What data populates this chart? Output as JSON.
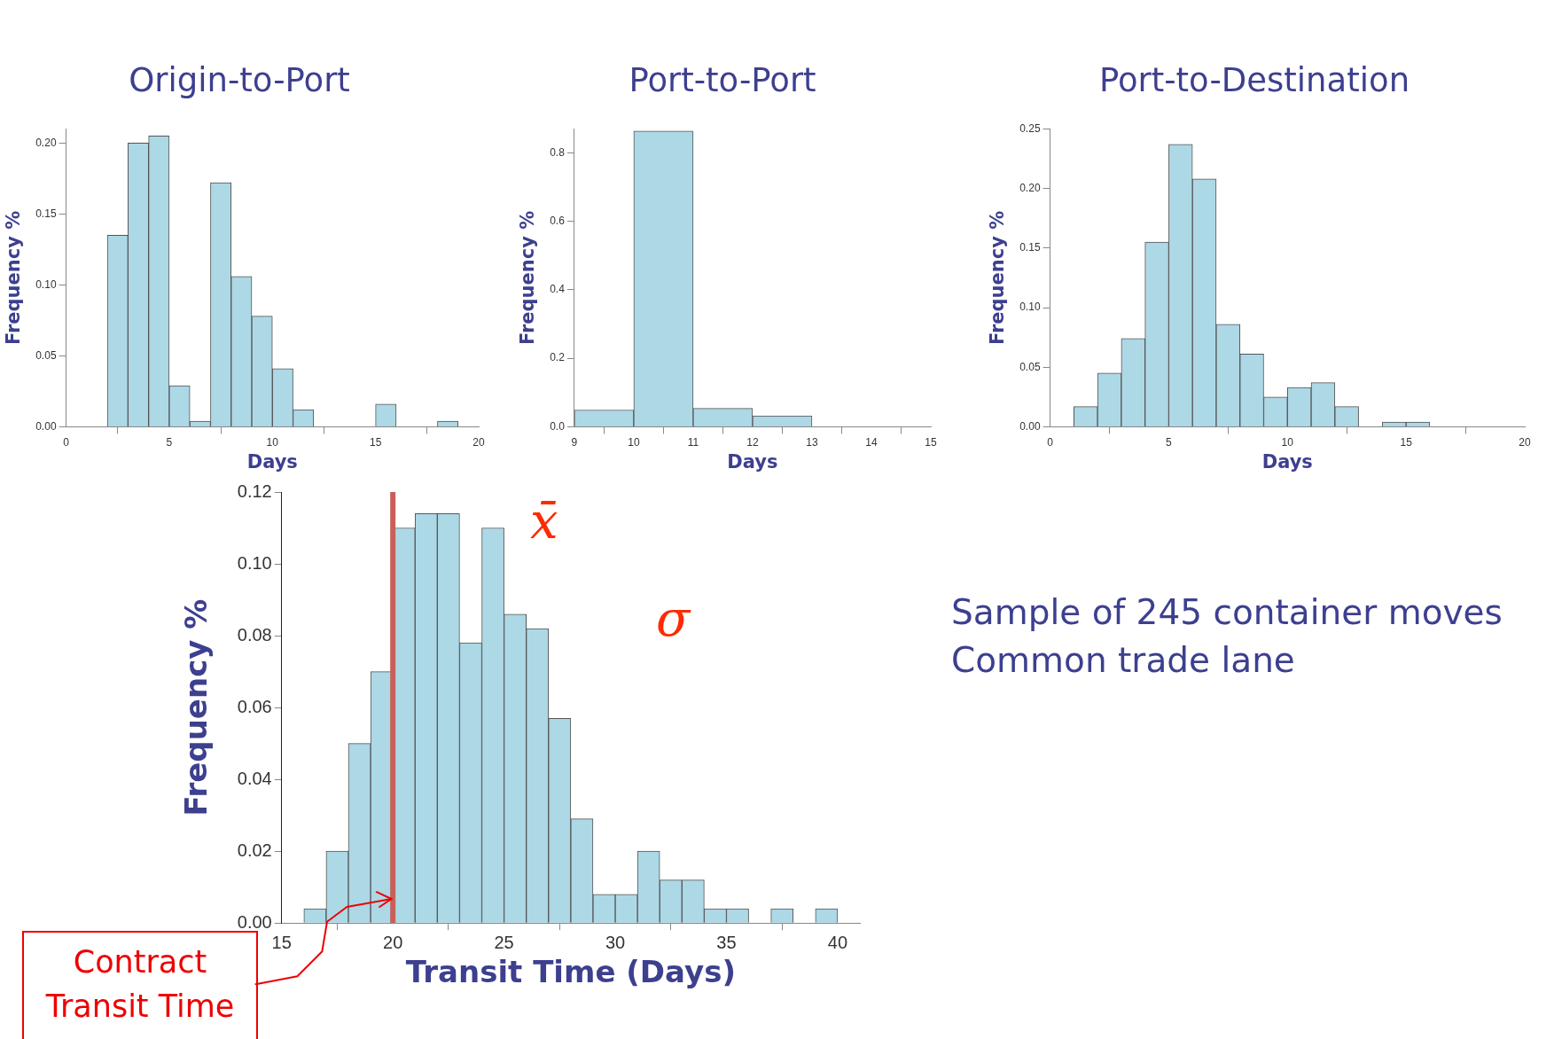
{
  "chart_data": [
    {
      "type": "histogram",
      "title": "Origin-to-Port",
      "xlabel": "Days",
      "ylabel": "Frequency %",
      "color": "#add8e6",
      "bins": [
        2,
        3,
        4,
        5,
        6,
        7,
        8,
        9,
        10,
        11,
        12,
        13,
        14,
        15,
        16,
        17,
        18,
        19
      ],
      "values": [
        0.135,
        0.2,
        0.205,
        0.029,
        0.004,
        0.172,
        0.106,
        0.078,
        0.041,
        0.012,
        0,
        0,
        0,
        0.016,
        0,
        0,
        0.004
      ],
      "xlim": [
        0,
        20
      ],
      "xticks": [
        0,
        5,
        10,
        15,
        20
      ],
      "ylim": [
        0,
        0.21
      ],
      "yticks": [
        {
          "value": 0,
          "label": "0.00"
        },
        {
          "value": 0.05,
          "label": "0.05"
        },
        {
          "value": 0.1,
          "label": "0.10"
        },
        {
          "value": 0.15,
          "label": "0.15"
        },
        {
          "value": 0.2,
          "label": "0.20"
        }
      ]
    },
    {
      "type": "histogram",
      "title": "Port-to-Port",
      "xlabel": "Days",
      "ylabel": "Frequency %",
      "color": "#add8e6",
      "bins": [
        9,
        10,
        11,
        12,
        13
      ],
      "values": [
        0.049,
        0.864,
        0.054,
        0.032
      ],
      "xlim": [
        9,
        15
      ],
      "xticks": [
        9,
        10,
        11,
        12,
        13,
        14,
        15
      ],
      "ylim": [
        0,
        0.87
      ],
      "yticks": [
        {
          "value": 0,
          "label": "0.0"
        },
        {
          "value": 0.2,
          "label": "0.2"
        },
        {
          "value": 0.4,
          "label": "0.4"
        },
        {
          "value": 0.6,
          "label": "0.6"
        },
        {
          "value": 0.8,
          "label": "0.8"
        }
      ]
    },
    {
      "type": "histogram",
      "title": "Port-to-Destination",
      "xlabel": "Days",
      "ylabel": "Frequency %",
      "color": "#add8e6",
      "bins": [
        1,
        2,
        3,
        4,
        5,
        6,
        7,
        8,
        9,
        10,
        11,
        12,
        13,
        14,
        15,
        16
      ],
      "values": [
        0.017,
        0.045,
        0.074,
        0.155,
        0.237,
        0.208,
        0.086,
        0.061,
        0.025,
        0.033,
        0.037,
        0.017,
        0,
        0.004,
        0.004
      ],
      "xlim": [
        0,
        20
      ],
      "xticks": [
        0,
        5,
        10,
        15,
        20
      ],
      "ylim": [
        0,
        0.25
      ],
      "yticks": [
        {
          "value": 0,
          "label": "0.00"
        },
        {
          "value": 0.05,
          "label": "0.05"
        },
        {
          "value": 0.1,
          "label": "0.10"
        },
        {
          "value": 0.15,
          "label": "0.15"
        },
        {
          "value": 0.2,
          "label": "0.20"
        },
        {
          "value": 0.25,
          "label": "0.25"
        }
      ]
    },
    {
      "type": "histogram",
      "xlabel": "Transit Time (Days)",
      "ylabel": "Frequency %",
      "color": "#add8e6",
      "bins": [
        16,
        17,
        18,
        19,
        20,
        21,
        22,
        23,
        24,
        25,
        26,
        27,
        28,
        29,
        30,
        31,
        32,
        33,
        34,
        35,
        36,
        37,
        38,
        39,
        40
      ],
      "values": [
        0.004,
        0.02,
        0.05,
        0.07,
        0.11,
        0.114,
        0.114,
        0.078,
        0.11,
        0.086,
        0.082,
        0.057,
        0.029,
        0.008,
        0.008,
        0.02,
        0.012,
        0.012,
        0.004,
        0.004,
        0,
        0.004,
        0,
        0.004
      ],
      "xlim": [
        15,
        41
      ],
      "xticks": [
        15,
        20,
        25,
        30,
        35,
        40
      ],
      "ylim": [
        0,
        0.12
      ],
      "yticks": [
        {
          "value": 0,
          "label": "0.00"
        },
        {
          "value": 0.02,
          "label": "0.02"
        },
        {
          "value": 0.04,
          "label": "0.04"
        },
        {
          "value": 0.06,
          "label": "0.06"
        },
        {
          "value": 0.08,
          "label": "0.08"
        },
        {
          "value": 0.1,
          "label": "0.10"
        },
        {
          "value": 0.12,
          "label": "0.12"
        }
      ],
      "ref_lines": [
        {
          "axis": "x",
          "value": 20,
          "label": "Contract Transit Time",
          "color": "#c8605a"
        }
      ],
      "annotations": [
        "Sample of 245 container moves",
        "Common trade lane",
        "x̄",
        "σ"
      ]
    }
  ]
}
